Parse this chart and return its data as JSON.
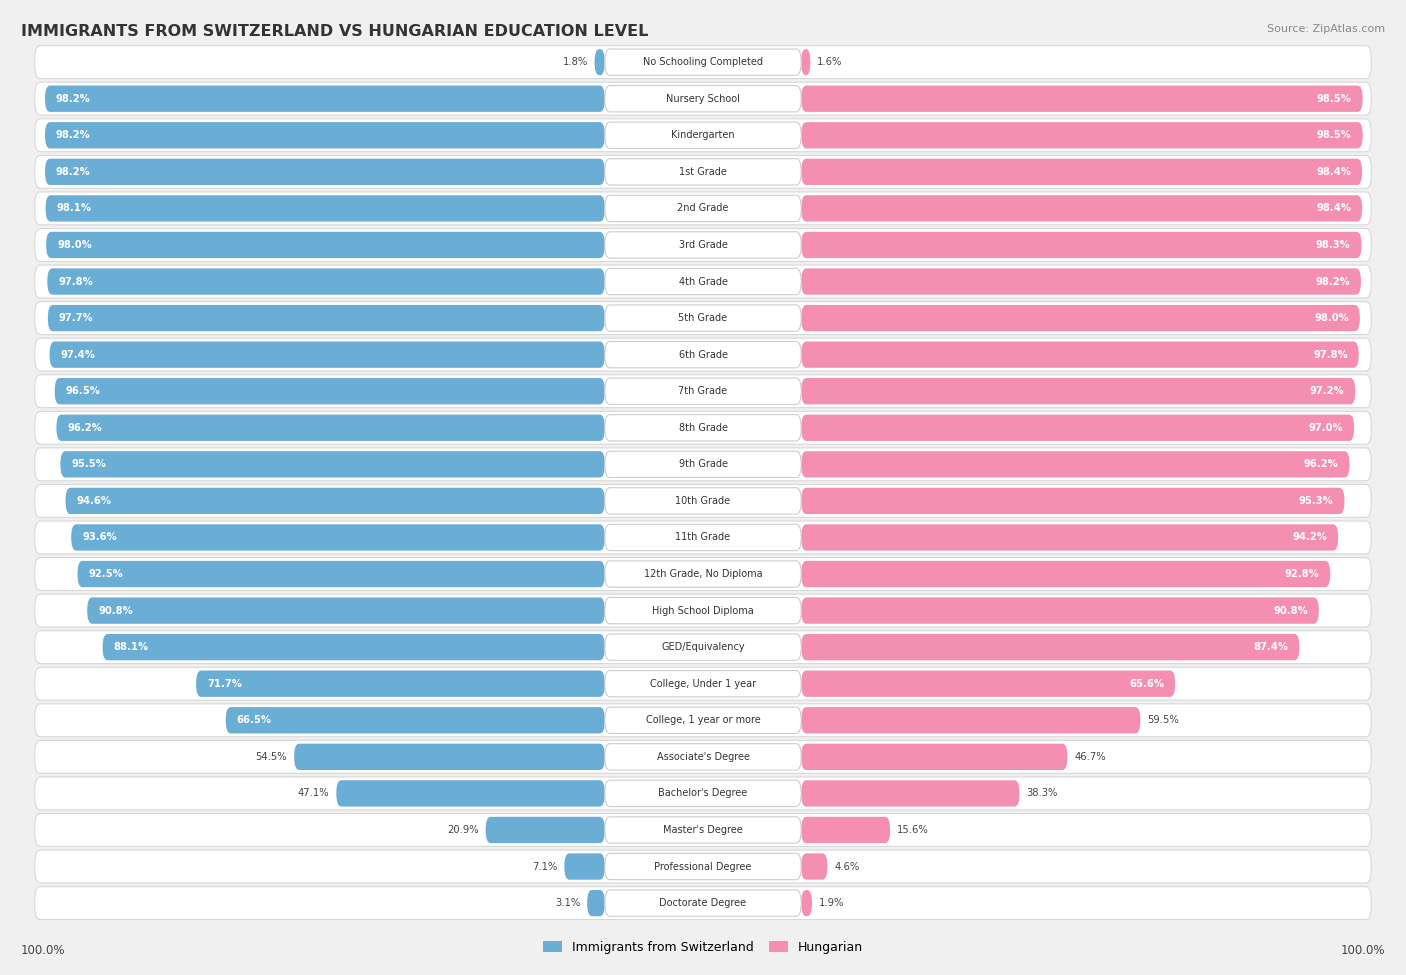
{
  "title": "IMMIGRANTS FROM SWITZERLAND VS HUNGARIAN EDUCATION LEVEL",
  "source": "Source: ZipAtlas.com",
  "categories": [
    "No Schooling Completed",
    "Nursery School",
    "Kindergarten",
    "1st Grade",
    "2nd Grade",
    "3rd Grade",
    "4th Grade",
    "5th Grade",
    "6th Grade",
    "7th Grade",
    "8th Grade",
    "9th Grade",
    "10th Grade",
    "11th Grade",
    "12th Grade, No Diploma",
    "High School Diploma",
    "GED/Equivalency",
    "College, Under 1 year",
    "College, 1 year or more",
    "Associate's Degree",
    "Bachelor's Degree",
    "Master's Degree",
    "Professional Degree",
    "Doctorate Degree"
  ],
  "swiss_values": [
    1.8,
    98.2,
    98.2,
    98.2,
    98.1,
    98.0,
    97.8,
    97.7,
    97.4,
    96.5,
    96.2,
    95.5,
    94.6,
    93.6,
    92.5,
    90.8,
    88.1,
    71.7,
    66.5,
    54.5,
    47.1,
    20.9,
    7.1,
    3.1
  ],
  "hungarian_values": [
    1.6,
    98.5,
    98.5,
    98.4,
    98.4,
    98.3,
    98.2,
    98.0,
    97.8,
    97.2,
    97.0,
    96.2,
    95.3,
    94.2,
    92.8,
    90.8,
    87.4,
    65.6,
    59.5,
    46.7,
    38.3,
    15.6,
    4.6,
    1.9
  ],
  "swiss_color": "#6aaed6",
  "hungarian_color": "#f48fb1",
  "row_bg_color": "#ffffff",
  "outer_bg_color": "#f0f0f0",
  "row_border_color": "#d8d8d8"
}
